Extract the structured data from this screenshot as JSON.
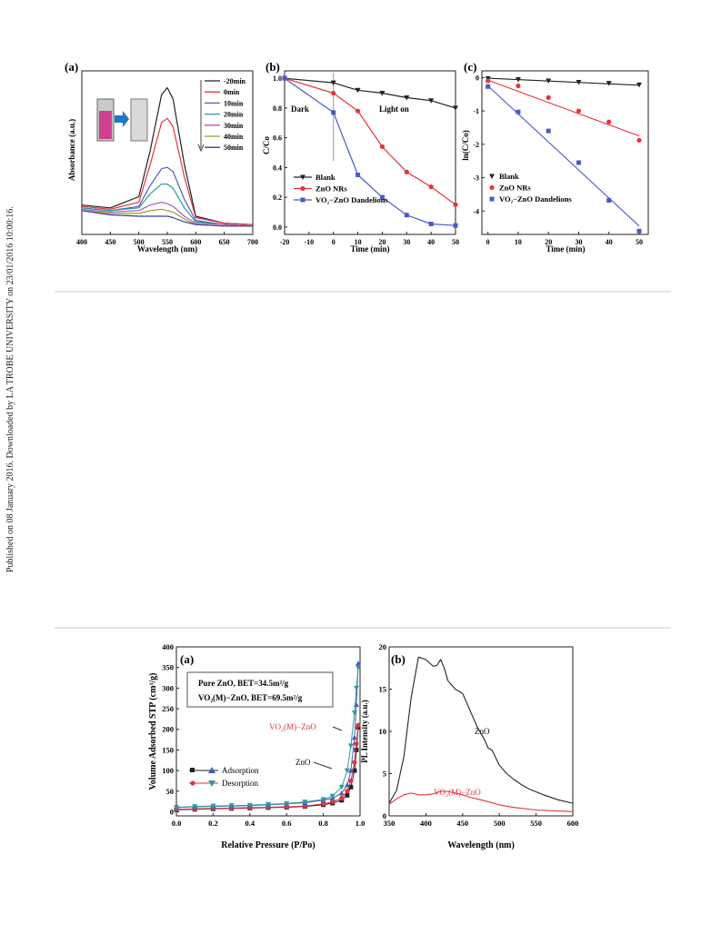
{
  "side_note": "Published on 08 January 2016. Downloaded by LA TROBE UNIVERSITY on 23/01/2016 10:00:16.",
  "figure1": {
    "a": {
      "panel_label": "(a)",
      "ylabel": "Absorbance (a.u.)",
      "xlabel": "Wavelength (nm)",
      "xticks": [
        "400",
        "450",
        "500",
        "550",
        "600",
        "650",
        "700"
      ]
    },
    "b": {
      "panel_label": "(b)",
      "ylabel": "C/Co",
      "xlabel": "Time (min)",
      "xticks": [
        "-20",
        "-10",
        "0",
        "10",
        "20",
        "30",
        "40",
        "50"
      ],
      "yticks": [
        "0.0",
        "0.2",
        "0.4",
        "0.6",
        "0.8",
        "1.0"
      ],
      "annotation_dark": "Dark",
      "annotation_light": "Light on"
    },
    "c": {
      "panel_label": "(c)",
      "ylabel": "ln(C/Co)",
      "xlabel": "Time (min)",
      "xticks": [
        "0",
        "10",
        "20",
        "30",
        "40",
        "50"
      ],
      "yticks": [
        "0",
        "-1",
        "-2",
        "-3",
        "-4"
      ]
    }
  },
  "figure2": {
    "a": {
      "panel_label": "(a)",
      "ylabel": "Volume Adsorbed STP (cm³/g)",
      "xlabel": "Relative Pressure (P/Po)",
      "xticks": [
        "0.0",
        "0.2",
        "0.4",
        "0.6",
        "0.8",
        "1.0"
      ],
      "yticks": [
        "0",
        "50",
        "100",
        "150",
        "200",
        "250",
        "300",
        "350",
        "400"
      ],
      "box_line1": "Pure ZnO, BET=34.5m²/g",
      "box_line2": "VO₂(M)−ZnO, BET=69.5m²/g",
      "annotation_vo2": "VO₂(M)−ZnO",
      "annotation_zno": "ZnO",
      "legend_adsorption": "Adsorption",
      "legend_desorption": "Desorption"
    },
    "b": {
      "panel_label": "(b)",
      "ylabel": "PL Intensity (a.u.)",
      "xlabel": "Wavelength (nm)",
      "xticks": [
        "350",
        "400",
        "450",
        "500",
        "550",
        "600"
      ],
      "yticks": [
        "0",
        "5",
        "10",
        "15",
        "20"
      ],
      "annotation_zno": "ZnO",
      "annotation_vo2": "VO₂(M)−ZnO"
    }
  },
  "colors": {
    "black": "#222222",
    "red": "#e8323a",
    "blue": "#4a5bc4",
    "teal": "#2a9c9c",
    "green": "#6ac26a",
    "purple": "#b05ab8",
    "olive": "#9a9a2a",
    "navy": "#3a3aa0"
  },
  "chart_data": [
    {
      "type": "line",
      "id": "fig1a",
      "xlabel": "Wavelength (nm)",
      "ylabel": "Absorbance (a.u.)",
      "xlim": [
        400,
        700
      ],
      "series": [
        {
          "name": "-20min",
          "color": "#222222",
          "x": [
            400,
            450,
            500,
            520,
            540,
            550,
            560,
            580,
            600,
            650,
            700
          ],
          "values": [
            0.16,
            0.14,
            0.22,
            0.55,
            0.95,
            1.0,
            0.92,
            0.45,
            0.08,
            0.03,
            0.02
          ]
        },
        {
          "name": "0min",
          "color": "#e8323a",
          "x": [
            400,
            450,
            500,
            520,
            540,
            550,
            560,
            580,
            600,
            650,
            700
          ],
          "values": [
            0.15,
            0.13,
            0.18,
            0.45,
            0.75,
            0.78,
            0.72,
            0.36,
            0.07,
            0.03,
            0.02
          ]
        },
        {
          "name": "10min",
          "color": "#4a5bc4",
          "x": [
            400,
            450,
            500,
            520,
            540,
            550,
            560,
            580,
            600,
            650,
            700
          ],
          "values": [
            0.14,
            0.12,
            0.15,
            0.3,
            0.42,
            0.43,
            0.4,
            0.2,
            0.05,
            0.02,
            0.01
          ]
        },
        {
          "name": "20min",
          "color": "#2a9c9c",
          "x": [
            400,
            450,
            500,
            520,
            540,
            550,
            560,
            580,
            600,
            650,
            700
          ],
          "values": [
            0.14,
            0.12,
            0.14,
            0.24,
            0.31,
            0.31,
            0.28,
            0.14,
            0.04,
            0.02,
            0.01
          ]
        },
        {
          "name": "30min",
          "color": "#b05ab8",
          "x": [
            400,
            450,
            500,
            520,
            540,
            550,
            560,
            580,
            600,
            650,
            700
          ],
          "values": [
            0.13,
            0.11,
            0.12,
            0.16,
            0.18,
            0.17,
            0.15,
            0.08,
            0.03,
            0.02,
            0.01
          ]
        },
        {
          "name": "40min",
          "color": "#9a9a2a",
          "x": [
            400,
            450,
            500,
            520,
            540,
            550,
            560,
            580,
            600,
            650,
            700
          ],
          "values": [
            0.12,
            0.1,
            0.1,
            0.12,
            0.13,
            0.12,
            0.11,
            0.06,
            0.02,
            0.01,
            0.01
          ]
        },
        {
          "name": "50min",
          "color": "#3a3aa0",
          "x": [
            400,
            450,
            500,
            520,
            540,
            550,
            560,
            580,
            600,
            650,
            700
          ],
          "values": [
            0.12,
            0.09,
            0.08,
            0.08,
            0.08,
            0.08,
            0.07,
            0.04,
            0.02,
            0.01,
            0.01
          ]
        }
      ]
    },
    {
      "type": "line",
      "id": "fig1b",
      "xlabel": "Time (min)",
      "ylabel": "C/Co",
      "xlim": [
        -20,
        50
      ],
      "ylim": [
        -0.05,
        1.05
      ],
      "series": [
        {
          "name": "Blank",
          "color": "#222222",
          "marker": "triangle-down",
          "x": [
            -20,
            0,
            10,
            20,
            30,
            40,
            50
          ],
          "values": [
            1.0,
            0.97,
            0.92,
            0.9,
            0.87,
            0.85,
            0.8
          ]
        },
        {
          "name": "ZnO NRs",
          "color": "#e8323a",
          "marker": "circle",
          "x": [
            -20,
            0,
            10,
            20,
            30,
            40,
            50
          ],
          "values": [
            1.0,
            0.9,
            0.78,
            0.54,
            0.37,
            0.27,
            0.15
          ]
        },
        {
          "name": "VO₂−ZnO Dandelions",
          "color": "#4a5bc4",
          "marker": "square",
          "x": [
            -20,
            0,
            10,
            20,
            30,
            40,
            50
          ],
          "values": [
            1.0,
            0.77,
            0.35,
            0.2,
            0.08,
            0.02,
            0.01
          ]
        }
      ]
    },
    {
      "type": "scatter",
      "id": "fig1c",
      "xlabel": "Time (min)",
      "ylabel": "ln(C/Co)",
      "xlim": [
        -2,
        53
      ],
      "ylim": [
        -4.7,
        0.2
      ],
      "series": [
        {
          "name": "Blank",
          "color": "#222222",
          "marker": "triangle-down",
          "x": [
            0,
            10,
            20,
            30,
            40,
            50
          ],
          "values": [
            -0.03,
            -0.06,
            -0.1,
            -0.14,
            -0.17,
            -0.22
          ],
          "fit": [
            [
              0,
              -0.02
            ],
            [
              50,
              -0.23
            ]
          ]
        },
        {
          "name": "ZnO NRs",
          "color": "#e8323a",
          "marker": "circle",
          "x": [
            0,
            10,
            20,
            30,
            40,
            50
          ],
          "values": [
            -0.1,
            -0.25,
            -0.6,
            -1.0,
            -1.33,
            -1.88
          ],
          "fit": [
            [
              0,
              -0.08
            ],
            [
              50,
              -1.75
            ]
          ]
        },
        {
          "name": "VO₂−ZnO Dandelions",
          "color": "#4a5bc4",
          "marker": "square",
          "x": [
            0,
            10,
            20,
            30,
            40,
            50
          ],
          "values": [
            -0.27,
            -1.03,
            -1.6,
            -2.55,
            -3.68,
            -4.6
          ],
          "fit": [
            [
              0,
              -0.25
            ],
            [
              50,
              -4.45
            ]
          ]
        }
      ]
    },
    {
      "type": "line",
      "id": "fig2a",
      "xlabel": "Relative Pressure (P/Po)",
      "ylabel": "Volume Adsorbed STP (cm³/g)",
      "xlim": [
        0,
        1.0
      ],
      "ylim": [
        -10,
        400
      ],
      "series": [
        {
          "name": "ZnO Adsorption",
          "color": "#222222",
          "marker": "square",
          "x": [
            0,
            0.1,
            0.2,
            0.3,
            0.4,
            0.5,
            0.6,
            0.7,
            0.8,
            0.85,
            0.9,
            0.93,
            0.95,
            0.97,
            0.98,
            0.99
          ],
          "values": [
            5,
            6,
            7,
            8,
            9,
            10,
            11,
            13,
            17,
            21,
            28,
            40,
            60,
            100,
            150,
            205
          ]
        },
        {
          "name": "ZnO Desorption",
          "color": "#e8323a",
          "marker": "circle",
          "x": [
            0.99,
            0.98,
            0.97,
            0.95,
            0.93,
            0.9,
            0.85,
            0.8,
            0.7,
            0.6,
            0.5,
            0.4,
            0.3,
            0.2,
            0.1,
            0
          ],
          "values": [
            210,
            165,
            120,
            75,
            50,
            33,
            24,
            19,
            14,
            12,
            11,
            10,
            9,
            8,
            7,
            6
          ]
        },
        {
          "name": "VO₂(M)−ZnO Adsorption",
          "color": "#4a5bc4",
          "marker": "triangle-up",
          "x": [
            0,
            0.1,
            0.2,
            0.3,
            0.4,
            0.5,
            0.6,
            0.7,
            0.8,
            0.85,
            0.9,
            0.93,
            0.95,
            0.97,
            0.98,
            0.99
          ],
          "values": [
            10,
            12,
            13,
            14,
            15,
            17,
            19,
            22,
            28,
            33,
            45,
            65,
            100,
            180,
            260,
            360
          ]
        },
        {
          "name": "VO₂(M)−ZnO Desorption",
          "color": "#2a9c9c",
          "marker": "triangle-down",
          "x": [
            0.99,
            0.98,
            0.97,
            0.95,
            0.93,
            0.9,
            0.85,
            0.8,
            0.7,
            0.6,
            0.5,
            0.4,
            0.3,
            0.2,
            0.1,
            0
          ],
          "values": [
            350,
            300,
            240,
            160,
            100,
            60,
            38,
            30,
            24,
            20,
            18,
            16,
            15,
            14,
            13,
            11
          ]
        }
      ]
    },
    {
      "type": "line",
      "id": "fig2b",
      "xlabel": "Wavelength (nm)",
      "ylabel": "PL Intensity (a.u.)",
      "xlim": [
        350,
        600
      ],
      "ylim": [
        0,
        20
      ],
      "series": [
        {
          "name": "ZnO",
          "color": "#222222",
          "x": [
            350,
            360,
            370,
            380,
            390,
            400,
            410,
            415,
            420,
            425,
            430,
            440,
            450,
            460,
            470,
            480,
            485,
            490,
            500,
            510,
            520,
            530,
            540,
            560,
            580,
            600
          ],
          "values": [
            1.5,
            3,
            7,
            14,
            18.8,
            18.5,
            17.7,
            17.8,
            18.5,
            17.5,
            16,
            15,
            14.5,
            12.5,
            10.5,
            9,
            8,
            7.8,
            6,
            5,
            4.3,
            3.7,
            3.2,
            2.5,
            1.9,
            1.5
          ]
        },
        {
          "name": "VO₂(M)−ZnO",
          "color": "#e8323a",
          "x": [
            350,
            360,
            370,
            380,
            390,
            400,
            410,
            420,
            430,
            440,
            450,
            460,
            480,
            500,
            520,
            550,
            600
          ],
          "values": [
            1.4,
            2,
            2.5,
            2.7,
            2.5,
            2.5,
            2.6,
            2.9,
            2.9,
            2.7,
            2.5,
            2.2,
            1.8,
            1.3,
            1.0,
            0.7,
            0.5
          ]
        }
      ]
    }
  ]
}
